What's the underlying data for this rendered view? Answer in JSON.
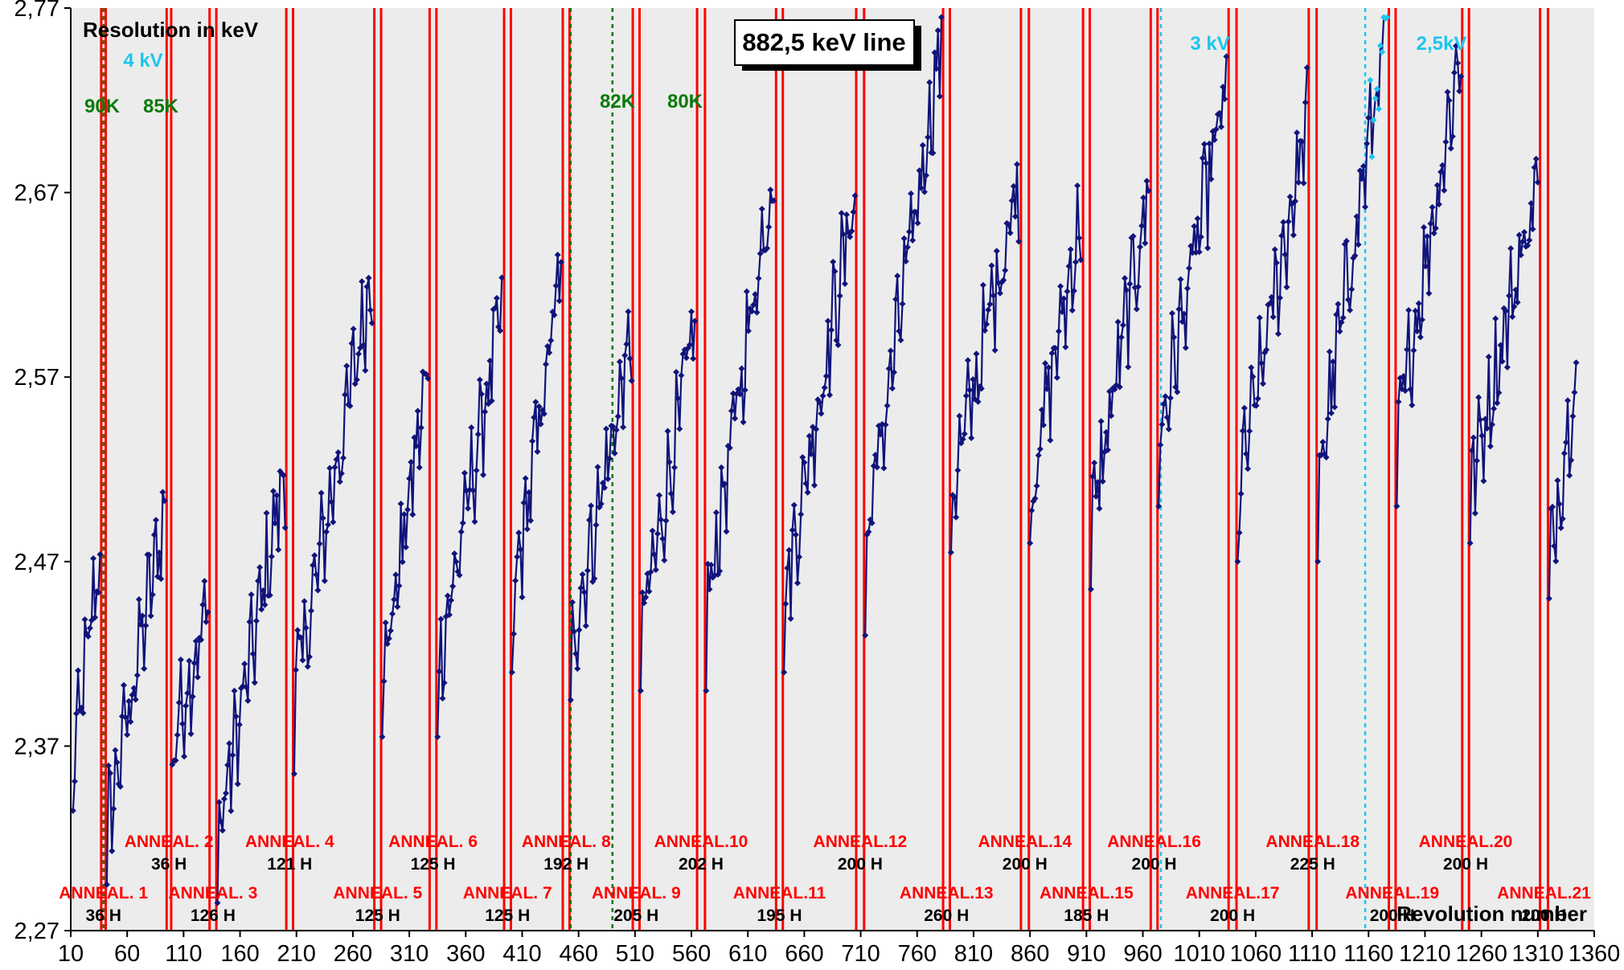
{
  "chart_data": {
    "type": "line",
    "title": "882,5 keV line",
    "ylabel": "Resolution in keV",
    "xlabel": "Revolution number",
    "xlim": [
      10,
      1360
    ],
    "ylim": [
      2.27,
      2.77
    ],
    "x_ticks": [
      "10",
      "60",
      "110",
      "160",
      "210",
      "260",
      "310",
      "360",
      "410",
      "460",
      "510",
      "560",
      "610",
      "660",
      "710",
      "760",
      "810",
      "860",
      "910",
      "960",
      "1010",
      "1060",
      "1110",
      "1160",
      "1210",
      "1260",
      "1310",
      "1360"
    ],
    "y_ticks": [
      "2,27",
      "2,37",
      "2,47",
      "2,57",
      "2,67",
      "2,77"
    ],
    "grid": false,
    "colors": {
      "background": "#ececec",
      "series": "#10147a",
      "series_3kv": "#1cc6ee",
      "anneal_lines": "#ff0000",
      "temp_lines": "#0a7a0a",
      "voltage_lines": "#1cc6ee"
    },
    "anneal_lines": [
      [
        37,
        41
      ],
      [
        95,
        99
      ],
      [
        133,
        139
      ],
      [
        201,
        207
      ],
      [
        279,
        285
      ],
      [
        328,
        334
      ],
      [
        394,
        400
      ],
      [
        446,
        452
      ],
      [
        508,
        514
      ],
      [
        565,
        572
      ],
      [
        635,
        641
      ],
      [
        706,
        713
      ],
      [
        783,
        789
      ],
      [
        852,
        859
      ],
      [
        907,
        913
      ],
      [
        967,
        973
      ],
      [
        1036,
        1043
      ],
      [
        1107,
        1114
      ],
      [
        1178,
        1184
      ],
      [
        1243,
        1249
      ],
      [
        1312,
        1319
      ]
    ],
    "temperature_lines": [
      39,
      453,
      490
    ],
    "voltage_lines": [
      976,
      1157
    ],
    "anneals": [
      {
        "label": "ANNEAL. 1",
        "hours": "36 H"
      },
      {
        "label": "ANNEAL. 2",
        "hours": "36 H"
      },
      {
        "label": "ANNEAL. 3",
        "hours": "126 H"
      },
      {
        "label": "ANNEAL. 4",
        "hours": "121 H"
      },
      {
        "label": "ANNEAL. 5",
        "hours": "125 H"
      },
      {
        "label": "ANNEAL. 6",
        "hours": "125 H"
      },
      {
        "label": "ANNEAL. 7",
        "hours": "125 H"
      },
      {
        "label": "ANNEAL. 8",
        "hours": "192 H"
      },
      {
        "label": "ANNEAL. 9",
        "hours": "205 H"
      },
      {
        "label": "ANNEAL.10",
        "hours": "202 H"
      },
      {
        "label": "ANNEAL.11",
        "hours": "195 H"
      },
      {
        "label": "ANNEAL.12",
        "hours": "200 H"
      },
      {
        "label": "ANNEAL.13",
        "hours": "260 H"
      },
      {
        "label": "ANNEAL.14",
        "hours": "200 H"
      },
      {
        "label": "ANNEAL.15",
        "hours": "185 H"
      },
      {
        "label": "ANNEAL.16",
        "hours": "200 H"
      },
      {
        "label": "ANNEAL.17",
        "hours": "200 H"
      },
      {
        "label": "ANNEAL.18",
        "hours": "225 H"
      },
      {
        "label": "ANNEAL.19",
        "hours": "200 H"
      },
      {
        "label": "ANNEAL.20",
        "hours": "200 H"
      },
      {
        "label": "ANNEAL.21",
        "hours": "200 H"
      }
    ],
    "temperatures": [
      "90K",
      "85K",
      "82K",
      "80K"
    ],
    "voltages": [
      "4 kV",
      "3 kV",
      "2,5kV"
    ],
    "cycles": [
      {
        "x0": 12,
        "x1": 37,
        "y0": 2.335,
        "y1": 2.482
      },
      {
        "x0": 42,
        "x1": 94,
        "y0": 2.295,
        "y1": 2.5
      },
      {
        "x0": 100,
        "x1": 132,
        "y0": 2.36,
        "y1": 2.445
      },
      {
        "x0": 140,
        "x1": 200,
        "y0": 2.285,
        "y1": 2.52
      },
      {
        "x0": 208,
        "x1": 278,
        "y0": 2.355,
        "y1": 2.63
      },
      {
        "x0": 286,
        "x1": 327,
        "y0": 2.375,
        "y1": 2.575
      },
      {
        "x0": 335,
        "x1": 393,
        "y0": 2.375,
        "y1": 2.61
      },
      {
        "x0": 401,
        "x1": 445,
        "y0": 2.41,
        "y1": 2.63
      },
      {
        "x0": 453,
        "x1": 507,
        "y0": 2.395,
        "y1": 2.59
      },
      {
        "x0": 515,
        "x1": 564,
        "y0": 2.4,
        "y1": 2.6
      },
      {
        "x0": 573,
        "x1": 634,
        "y0": 2.4,
        "y1": 2.69
      },
      {
        "x0": 642,
        "x1": 705,
        "y0": 2.41,
        "y1": 2.67
      },
      {
        "x0": 714,
        "x1": 782,
        "y0": 2.43,
        "y1": 2.755
      },
      {
        "x0": 790,
        "x1": 851,
        "y0": 2.475,
        "y1": 2.68
      },
      {
        "x0": 860,
        "x1": 906,
        "y0": 2.48,
        "y1": 2.66
      },
      {
        "x0": 914,
        "x1": 966,
        "y0": 2.455,
        "y1": 2.675
      },
      {
        "x0": 974,
        "x1": 1035,
        "y0": 2.5,
        "y1": 2.73
      },
      {
        "x0": 1044,
        "x1": 1106,
        "y0": 2.47,
        "y1": 2.71
      },
      {
        "x0": 1115,
        "x1": 1177,
        "y0": 2.47,
        "y1": 2.765
      },
      {
        "x0": 1185,
        "x1": 1242,
        "y0": 2.5,
        "y1": 2.75
      },
      {
        "x0": 1250,
        "x1": 1311,
        "y0": 2.48,
        "y1": 2.68
      },
      {
        "x0": 1320,
        "x1": 1345,
        "y0": 2.45,
        "y1": 2.58
      }
    ]
  }
}
